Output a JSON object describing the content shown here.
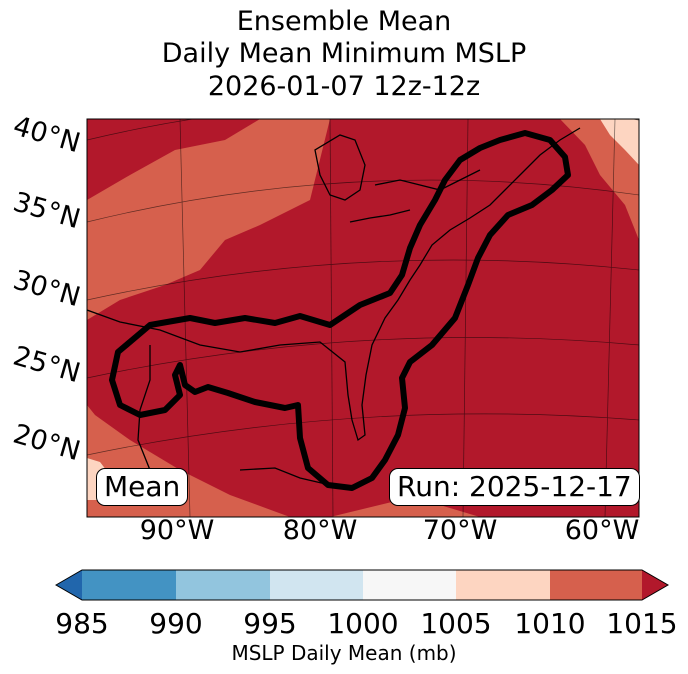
{
  "title": {
    "line1": "Ensemble Mean",
    "line2": "Daily Mean Minimum MSLP",
    "line3": "2026-01-07 12z-12z"
  },
  "map": {
    "lat_labels": [
      "40°N",
      "35°N",
      "30°N",
      "25°N",
      "20°N"
    ],
    "lon_labels": [
      "90°W",
      "80°W",
      "70°W",
      "60°W"
    ],
    "mean_box": "Mean",
    "run_box": "Run: 2025-12-17",
    "contour_color": "#000000",
    "fill_colors": {
      "1005-1010": "#fdd5c1",
      "1010-1015": "#d6604d",
      "1015+": "#b2182b"
    }
  },
  "colorbar": {
    "label": "MSLP Daily Mean (mb)",
    "ticks": [
      "985",
      "990",
      "995",
      "1000",
      "1005",
      "1010",
      "1015"
    ],
    "colors": [
      "#4393c3",
      "#92c5de",
      "#d1e5f0",
      "#f7f7f7",
      "#fdd5c1",
      "#d6604d"
    ],
    "under_color": "#2166ac",
    "over_color": "#b2182b"
  }
}
